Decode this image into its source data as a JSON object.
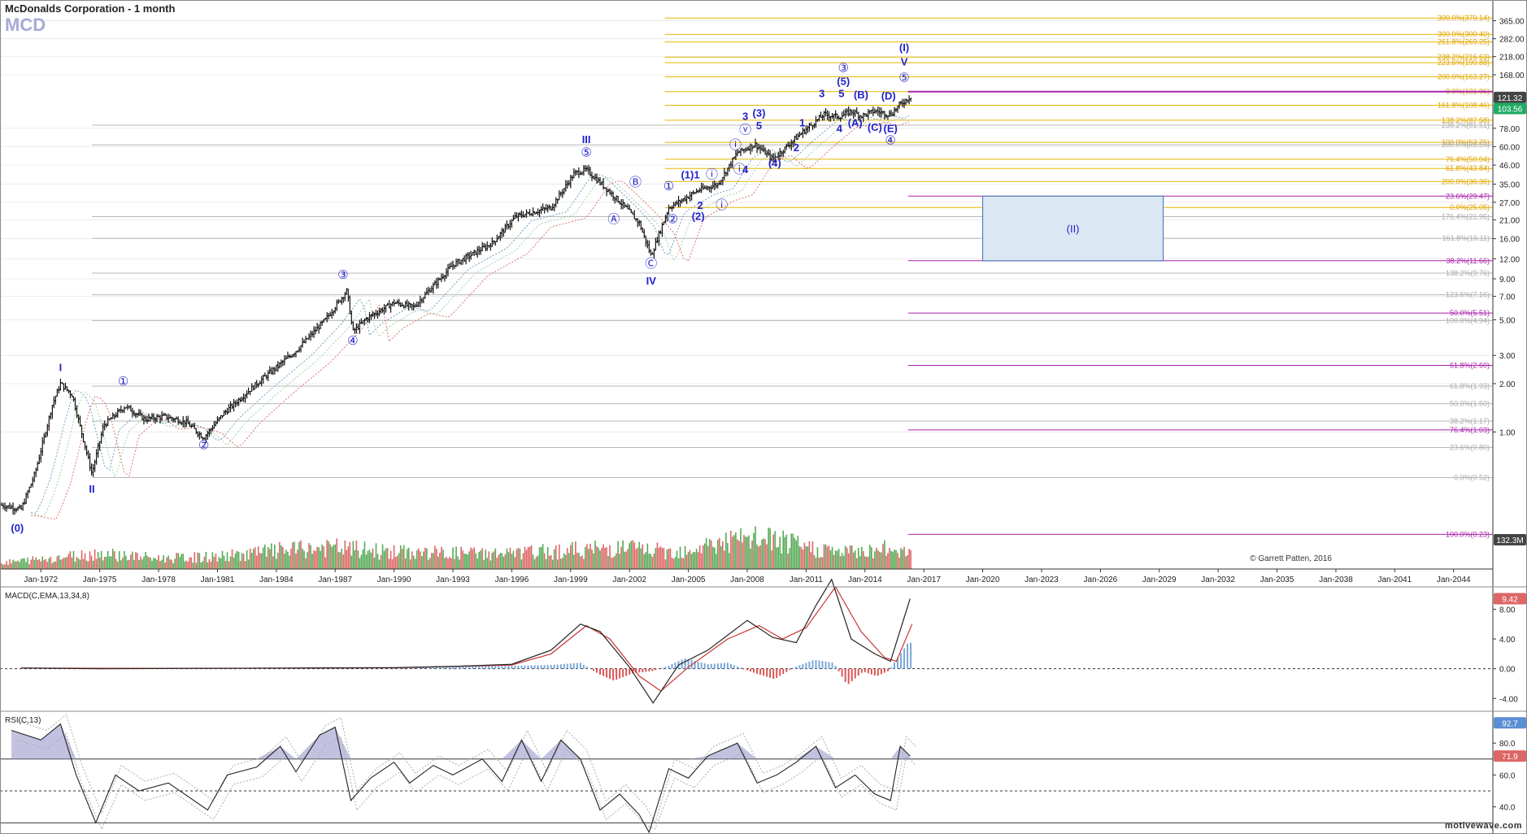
{
  "header": {
    "title": "McDonalds Corporation - 1 month",
    "symbol": "MCD",
    "credit": "© Garrett Patten, 2016",
    "brand": "motivewave.com"
  },
  "colors": {
    "candle": "#111111",
    "wave": "#2222cc",
    "fib_gold": "#e6b800",
    "fib_gold_text": "#e0a000",
    "fib_grey": "#b8b8b8",
    "fib_magenta": "#aa22aa",
    "box_fill": "#dbe8f3",
    "box_stroke": "#3a6fb0",
    "vol_up": "#55aa55",
    "vol_down": "#dd6666",
    "macd_line": "#222222",
    "macd_signal": "#cc3333",
    "macd_hist_up": "#7aa8d8",
    "macd_hist_down": "#dd5555",
    "rsi_fill": "#9999cc",
    "price_badge_dark": "#444444",
    "price_badge_green": "#22aa66",
    "badge_red": "#dd6666",
    "badge_blue": "#5b8fd4"
  },
  "chart_data": [
    {
      "type": "candlestick",
      "title": "McDonalds Corporation - 1 month",
      "y_scale": "log",
      "y_ticks": [
        "365.00",
        "282.00",
        "218.00",
        "168.00",
        "78.00",
        "60.00",
        "46.00",
        "35.00",
        "27.00",
        "21.00",
        "16.00",
        "12.00",
        "9.00",
        "7.00",
        "5.00",
        "3.00",
        "2.00",
        "1.00"
      ],
      "x_ticks": [
        "Jan-1972",
        "Jan-1975",
        "Jan-1978",
        "Jan-1981",
        "Jan-1984",
        "Jan-1987",
        "Jan-1990",
        "Jan-1993",
        "Jan-1996",
        "Jan-1999",
        "Jan-2002",
        "Jan-2005",
        "Jan-2008",
        "Jan-2011",
        "Jan-2014",
        "Jan-2017",
        "Jan-2020",
        "Jan-2023",
        "Jan-2026",
        "Jan-2029",
        "Jan-2032",
        "Jan-2035",
        "Jan-2038",
        "Jan-2041",
        "Jan-2044"
      ],
      "price_path": [
        [
          1970.0,
          0.35
        ],
        [
          1971.0,
          0.33
        ],
        [
          1971.7,
          0.55
        ],
        [
          1972.6,
          1.5
        ],
        [
          1973.0,
          2.0
        ],
        [
          1973.6,
          1.7
        ],
        [
          1974.6,
          0.55
        ],
        [
          1975.2,
          1.1
        ],
        [
          1976.3,
          1.45
        ],
        [
          1977.3,
          1.2
        ],
        [
          1978.3,
          1.25
        ],
        [
          1979.4,
          1.15
        ],
        [
          1980.3,
          0.92
        ],
        [
          1981.3,
          1.3
        ],
        [
          1983.0,
          2.0
        ],
        [
          1985.0,
          3.2
        ],
        [
          1986.5,
          5.0
        ],
        [
          1987.6,
          7.6
        ],
        [
          1987.9,
          4.2
        ],
        [
          1988.6,
          5.1
        ],
        [
          1990.0,
          6.4
        ],
        [
          1991.0,
          6.0
        ],
        [
          1993.0,
          11.0
        ],
        [
          1995.0,
          15.0
        ],
        [
          1996.2,
          22.0
        ],
        [
          1998.0,
          25.0
        ],
        [
          1999.2,
          41.0
        ],
        [
          1999.8,
          43.0
        ],
        [
          2000.8,
          33.0
        ],
        [
          2001.8,
          25.0
        ],
        [
          2002.5,
          20.0
        ],
        [
          2003.1,
          12.5
        ],
        [
          2004.0,
          25.0
        ],
        [
          2004.6,
          27.5
        ],
        [
          2005.5,
          32.0
        ],
        [
          2006.5,
          35.0
        ],
        [
          2007.5,
          55.0
        ],
        [
          2008.4,
          62.0
        ],
        [
          2009.3,
          50.0
        ],
        [
          2010.6,
          70.0
        ],
        [
          2011.9,
          95.0
        ],
        [
          2012.7,
          92.0
        ],
        [
          2013.3,
          100.0
        ],
        [
          2013.8,
          93.0
        ],
        [
          2014.5,
          100.0
        ],
        [
          2015.3,
          95.0
        ],
        [
          2015.8,
          110.0
        ],
        [
          2016.4,
          125.0
        ]
      ],
      "fib_gold": [
        {
          "label": "300.0%(379.14)",
          "value": 379.14
        },
        {
          "label": "300.0%(300.40)",
          "value": 300.4
        },
        {
          "label": "261.8%(269.25)",
          "value": 269.25
        },
        {
          "label": "238.2%(216.63)",
          "value": 216.63
        },
        {
          "label": "223.6%(199.88)",
          "value": 199.88
        },
        {
          "label": "200.0%(163.27)",
          "value": 163.27
        },
        {
          "label": "0.0%(131.96)",
          "value": 131.96
        },
        {
          "label": "161.8%(108.46)",
          "value": 108.46
        },
        {
          "label": "138.2%(87.58)",
          "value": 87.58
        },
        {
          "label": "100.0%(63.76)",
          "value": 63.76
        },
        {
          "label": "76.4%(50.04)",
          "value": 50.04
        },
        {
          "label": "61.8%(43.84)",
          "value": 43.84
        },
        {
          "label": "200.0%(36.36)",
          "value": 36.36
        },
        {
          "label": "0.0%(25.05)",
          "value": 25.05
        }
      ],
      "fib_grey": [
        {
          "label": "238.2%(81.51)",
          "value": 81.51
        },
        {
          "label": "200.0%(61.59)",
          "value": 61.59
        },
        {
          "label": "176.4%(21.96)",
          "value": 21.96
        },
        {
          "label": "161.8%(16.11)",
          "value": 16.11
        },
        {
          "label": "138.2%(9.76)",
          "value": 9.76
        },
        {
          "label": "123.6%(7.16)",
          "value": 7.16
        },
        {
          "label": "100.0%(4.94)",
          "value": 4.94
        },
        {
          "label": "61.8%(1.93)",
          "value": 1.93
        },
        {
          "label": "50.0%(1.50)",
          "value": 1.5
        },
        {
          "label": "38.2%(1.17)",
          "value": 1.17
        },
        {
          "label": "23.6%(0.80)",
          "value": 0.8
        },
        {
          "label": "0.0%(0.52)",
          "value": 0.52
        }
      ],
      "fib_magenta": [
        {
          "label": "23.6%(29.47)",
          "value": 29.47
        },
        {
          "label": "38.2%(11.66)",
          "value": 11.66
        },
        {
          "label": "50.0%(5.51)",
          "value": 5.51
        },
        {
          "label": "61.8%(2.60)",
          "value": 2.6
        },
        {
          "label": "76.4%(1.03)",
          "value": 1.03
        },
        {
          "label": "100.0%(0.23)",
          "value": 0.23
        }
      ],
      "target_box": {
        "label": "(II)",
        "x0": 2020.0,
        "x1": 2029.2,
        "y0": 11.66,
        "y1": 29.47
      },
      "price_badges": [
        {
          "label": "121.32",
          "value": 121.32,
          "kind": "dark"
        },
        {
          "label": "103.56",
          "value": 103.56,
          "kind": "green"
        }
      ],
      "wave_labels": [
        {
          "t": "(0)",
          "x": 1970.8,
          "y": 0.24
        },
        {
          "t": "I",
          "x": 1973.0,
          "y": 2.4
        },
        {
          "t": "II",
          "x": 1974.6,
          "y": 0.42
        },
        {
          "t": "①",
          "x": 1976.2,
          "y": 1.95
        },
        {
          "t": "②",
          "x": 1980.3,
          "y": 0.78
        },
        {
          "t": "③",
          "x": 1987.4,
          "y": 9.0
        },
        {
          "t": "④",
          "x": 1987.9,
          "y": 3.5
        },
        {
          "t": "III",
          "x": 1999.8,
          "y": 63.0
        },
        {
          "t": "⑤",
          "x": 1999.8,
          "y": 52.0
        },
        {
          "t": "Ⓐ",
          "x": 2001.2,
          "y": 20.0
        },
        {
          "t": "Ⓑ",
          "x": 2002.3,
          "y": 34.0
        },
        {
          "t": "Ⓒ",
          "x": 2003.1,
          "y": 10.6
        },
        {
          "t": "IV",
          "x": 2003.1,
          "y": 8.3
        },
        {
          "t": "①",
          "x": 2004.0,
          "y": 32.0
        },
        {
          "t": "②",
          "x": 2004.2,
          "y": 20.0
        },
        {
          "t": "(1)1",
          "x": 2005.1,
          "y": 38.0
        },
        {
          "t": "2",
          "x": 2005.6,
          "y": 24.5
        },
        {
          "t": "(2)",
          "x": 2005.5,
          "y": 21.0
        },
        {
          "t": "ⓘ",
          "x": 2006.2,
          "y": 38.0
        },
        {
          "t": "ⓘ",
          "x": 2006.7,
          "y": 24.5
        },
        {
          "t": "ⓘ",
          "x": 2007.4,
          "y": 58.0
        },
        {
          "t": "ⓥ",
          "x": 2007.9,
          "y": 72.0
        },
        {
          "t": "3",
          "x": 2007.9,
          "y": 88.0
        },
        {
          "t": "ⓘ",
          "x": 2007.6,
          "y": 41.0
        },
        {
          "t": "4",
          "x": 2007.9,
          "y": 41.0
        },
        {
          "t": "(3)",
          "x": 2008.6,
          "y": 92.0
        },
        {
          "t": "5",
          "x": 2008.6,
          "y": 77.0
        },
        {
          "t": "(4)",
          "x": 2009.4,
          "y": 45.0
        },
        {
          "t": "1",
          "x": 2010.8,
          "y": 80.0
        },
        {
          "t": "2",
          "x": 2010.5,
          "y": 56.0
        },
        {
          "t": "3",
          "x": 2011.8,
          "y": 122.0
        },
        {
          "t": "4",
          "x": 2012.7,
          "y": 74.0
        },
        {
          "t": "5",
          "x": 2012.8,
          "y": 122.0
        },
        {
          "t": "③",
          "x": 2012.9,
          "y": 175.0
        },
        {
          "t": "(5)",
          "x": 2012.9,
          "y": 145.0
        },
        {
          "t": "(A)",
          "x": 2013.5,
          "y": 80.0
        },
        {
          "t": "(B)",
          "x": 2013.8,
          "y": 120.0
        },
        {
          "t": "(C)",
          "x": 2014.5,
          "y": 75.0
        },
        {
          "t": "(D)",
          "x": 2015.2,
          "y": 118.0
        },
        {
          "t": "(E)",
          "x": 2015.3,
          "y": 74.0
        },
        {
          "t": "④",
          "x": 2015.3,
          "y": 62.0
        },
        {
          "t": "(I)",
          "x": 2016.0,
          "y": 235.0
        },
        {
          "t": "V",
          "x": 2016.0,
          "y": 192.0
        },
        {
          "t": "⑤",
          "x": 2016.0,
          "y": 152.0
        }
      ]
    },
    {
      "type": "bar",
      "title": "",
      "legend": "",
      "badge": "132.3M",
      "peaks": [
        [
          1970,
          20
        ],
        [
          1975,
          52
        ],
        [
          1978,
          35
        ],
        [
          1981,
          40
        ],
        [
          1984,
          60
        ],
        [
          1987,
          70
        ],
        [
          1990,
          55
        ],
        [
          1993,
          52
        ],
        [
          1996,
          50
        ],
        [
          1999,
          62
        ],
        [
          2002,
          70
        ],
        [
          2004,
          55
        ],
        [
          2007,
          90
        ],
        [
          2009,
          100
        ],
        [
          2011,
          70
        ],
        [
          2013,
          55
        ],
        [
          2015,
          65
        ]
      ]
    },
    {
      "type": "line",
      "title": "MACD(C,EMA,13,34,8)",
      "y_ticks": [
        "8.00",
        "4.00",
        "0.00",
        "-4.00"
      ],
      "badge": "9.42",
      "badge_value": 9.42,
      "ylim": [
        -5.5,
        11
      ],
      "macd": [
        [
          1971,
          0.1
        ],
        [
          1975,
          0.0
        ],
        [
          1980,
          0.05
        ],
        [
          1985,
          0.1
        ],
        [
          1990,
          0.15
        ],
        [
          1993,
          0.3
        ],
        [
          1996,
          0.6
        ],
        [
          1998,
          2.5
        ],
        [
          1999.5,
          6.0
        ],
        [
          2000.5,
          5.0
        ],
        [
          2002,
          0.2
        ],
        [
          2003.2,
          -4.6
        ],
        [
          2004.5,
          0.5
        ],
        [
          2006,
          2.5
        ],
        [
          2008,
          6.5
        ],
        [
          2009.3,
          4.2
        ],
        [
          2010.5,
          3.5
        ],
        [
          2011.5,
          8.5
        ],
        [
          2012.3,
          12.0
        ],
        [
          2013.3,
          4.0
        ],
        [
          2014.5,
          2.0
        ],
        [
          2015.3,
          1.0
        ],
        [
          2016.3,
          9.42
        ]
      ],
      "signal": [
        [
          1971,
          0.08
        ],
        [
          1980,
          0.05
        ],
        [
          1990,
          0.12
        ],
        [
          1996,
          0.5
        ],
        [
          1998,
          2.0
        ],
        [
          1999.8,
          5.8
        ],
        [
          2001,
          4.0
        ],
        [
          2002.5,
          -1.0
        ],
        [
          2003.6,
          -3.0
        ],
        [
          2005,
          0.2
        ],
        [
          2007,
          4.0
        ],
        [
          2008.6,
          5.8
        ],
        [
          2009.8,
          4.0
        ],
        [
          2011,
          5.5
        ],
        [
          2012.5,
          11.0
        ],
        [
          2013.8,
          5.0
        ],
        [
          2015,
          1.5
        ],
        [
          2015.6,
          1.0
        ],
        [
          2016.4,
          6.0
        ]
      ],
      "hist": [
        [
          1990,
          0.2
        ],
        [
          1994,
          0.3
        ],
        [
          1996,
          0.4
        ],
        [
          1998,
          0.5
        ],
        [
          1999.5,
          0.8
        ],
        [
          2000.5,
          -0.8
        ],
        [
          2001.2,
          -1.6
        ],
        [
          2002.2,
          -0.6
        ],
        [
          2003.2,
          -0.3
        ],
        [
          2004,
          0.4
        ],
        [
          2004.8,
          1.4
        ],
        [
          2006,
          0.6
        ],
        [
          2007,
          0.8
        ],
        [
          2008.4,
          -0.6
        ],
        [
          2009.4,
          -1.4
        ],
        [
          2010.4,
          0.2
        ],
        [
          2011.4,
          1.2
        ],
        [
          2012.4,
          0.8
        ],
        [
          2013.1,
          -2.2
        ],
        [
          2013.9,
          -0.4
        ],
        [
          2014.6,
          -1.0
        ],
        [
          2015.2,
          -0.3
        ],
        [
          2016.2,
          3.5
        ]
      ]
    },
    {
      "type": "line",
      "title": "RSI(C,13)",
      "y_ticks": [
        "80.0",
        "60.0",
        "40.0"
      ],
      "badges": [
        {
          "label": "92.7",
          "value": 92.7,
          "kind": "blue"
        },
        {
          "label": "71.9",
          "value": 71.9,
          "kind": "red"
        }
      ],
      "ylim": [
        25,
        100
      ],
      "levels": [
        70,
        50,
        30
      ],
      "rsi": [
        [
          1970.5,
          88
        ],
        [
          1972,
          82
        ],
        [
          1973,
          92
        ],
        [
          1973.8,
          60
        ],
        [
          1974.8,
          30
        ],
        [
          1975.8,
          60
        ],
        [
          1977,
          50
        ],
        [
          1978.5,
          55
        ],
        [
          1980.5,
          38
        ],
        [
          1981.5,
          60
        ],
        [
          1983,
          65
        ],
        [
          1984.2,
          78
        ],
        [
          1985,
          62
        ],
        [
          1986.2,
          85
        ],
        [
          1987,
          90
        ],
        [
          1987.8,
          44
        ],
        [
          1988.8,
          58
        ],
        [
          1990,
          68
        ],
        [
          1990.8,
          55
        ],
        [
          1992,
          66
        ],
        [
          1993,
          60
        ],
        [
          1994.5,
          70
        ],
        [
          1995.5,
          56
        ],
        [
          1996.5,
          82
        ],
        [
          1997.5,
          56
        ],
        [
          1998.5,
          82
        ],
        [
          1999.5,
          70
        ],
        [
          2000.5,
          38
        ],
        [
          2001.5,
          48
        ],
        [
          2002.5,
          35
        ],
        [
          2003,
          24
        ],
        [
          2004,
          64
        ],
        [
          2005,
          58
        ],
        [
          2006,
          72
        ],
        [
          2007.5,
          80
        ],
        [
          2008.5,
          55
        ],
        [
          2009.5,
          60
        ],
        [
          2010.5,
          68
        ],
        [
          2011.5,
          78
        ],
        [
          2012.5,
          52
        ],
        [
          2013.5,
          60
        ],
        [
          2014.5,
          48
        ],
        [
          2015.3,
          44
        ],
        [
          2015.8,
          78
        ],
        [
          2016.3,
          71.9
        ]
      ]
    }
  ]
}
